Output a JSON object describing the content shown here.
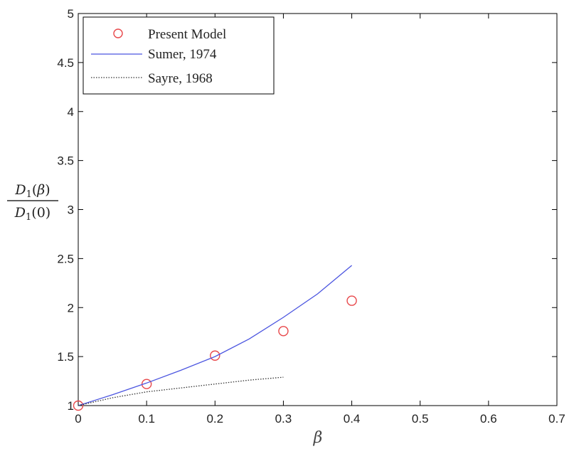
{
  "chart_data": {
    "type": "line",
    "title": "",
    "xlabel": "β",
    "ylabel": {
      "numerator": "D1(β)",
      "denominator": "D1(0)"
    },
    "xlim": [
      0,
      0.7
    ],
    "ylim": [
      1,
      5
    ],
    "x_ticks": [
      "0",
      "0.1",
      "0.2",
      "0.3",
      "0.4",
      "0.5",
      "0.6",
      "0.7"
    ],
    "y_ticks": [
      "1",
      "1.5",
      "2",
      "2.5",
      "3",
      "3.5",
      "4",
      "4.5",
      "5"
    ],
    "grid": false,
    "legend_position": "top-left",
    "series": [
      {
        "name": "Present Model",
        "style": "markers",
        "marker": "circle",
        "color": "#e8474a",
        "x": [
          0,
          0.1,
          0.2,
          0.3,
          0.4
        ],
        "y": [
          1.0,
          1.22,
          1.51,
          1.76,
          2.07
        ]
      },
      {
        "name": "Sumer, 1974",
        "style": "solid",
        "color": "#4b55e0",
        "x": [
          0,
          0.05,
          0.1,
          0.15,
          0.2,
          0.25,
          0.3,
          0.35,
          0.4
        ],
        "y": [
          1.0,
          1.11,
          1.23,
          1.36,
          1.5,
          1.68,
          1.9,
          2.14,
          2.43
        ]
      },
      {
        "name": "Sayre, 1968",
        "style": "dotted",
        "color": "#333333",
        "x": [
          0,
          0.05,
          0.1,
          0.15,
          0.2,
          0.25,
          0.3
        ],
        "y": [
          1.0,
          1.08,
          1.14,
          1.18,
          1.22,
          1.26,
          1.29
        ]
      }
    ]
  }
}
